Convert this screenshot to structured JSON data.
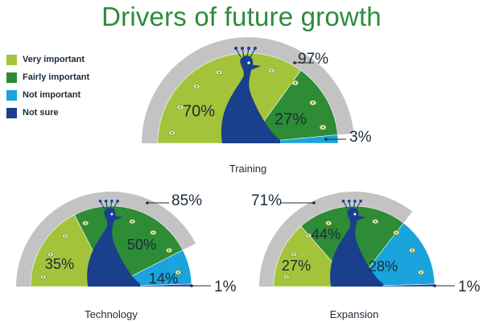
{
  "title": "Drivers of future growth",
  "legend": {
    "items": [
      {
        "label": "Very important",
        "color": "#a3c43a"
      },
      {
        "label": "Fairly important",
        "color": "#2d8c35"
      },
      {
        "label": "Not important",
        "color": "#1aa3dc"
      },
      {
        "label": "Not sure",
        "color": "#1a3f8c"
      }
    ]
  },
  "chart_data": [
    {
      "type": "pie",
      "label": "Training",
      "categories": [
        "Very important",
        "Fairly important",
        "Not important",
        "Not sure"
      ],
      "values": [
        70,
        27,
        3,
        0
      ],
      "value_labels": [
        "70%",
        "27%",
        "3%",
        ""
      ],
      "total": 97,
      "total_label": "97%"
    },
    {
      "type": "pie",
      "label": "Technology",
      "categories": [
        "Very important",
        "Fairly important",
        "Not important",
        "Not sure"
      ],
      "values": [
        35,
        50,
        14,
        1
      ],
      "value_labels": [
        "35%",
        "50%",
        "14%",
        "1%"
      ],
      "total": 85,
      "total_label": "85%"
    },
    {
      "type": "pie",
      "label": "Expansion",
      "categories": [
        "Very important",
        "Fairly important",
        "Not important",
        "Not sure"
      ],
      "values": [
        27,
        44,
        28,
        1
      ],
      "value_labels": [
        "27%",
        "44%",
        "28%",
        "1%"
      ],
      "total": 71,
      "total_label": "71%"
    }
  ]
}
